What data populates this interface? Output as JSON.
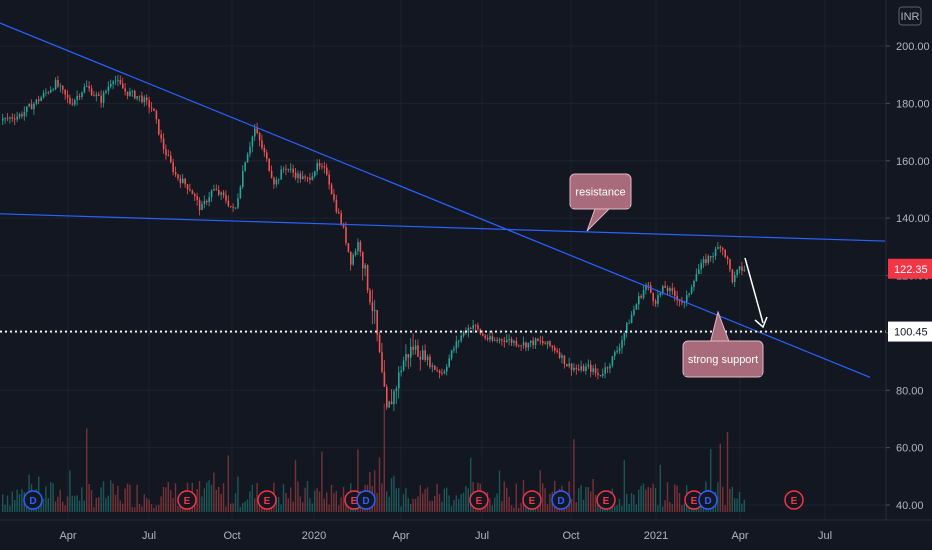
{
  "currency": "INR",
  "colors": {
    "background": "#131722",
    "up": "#26a69a",
    "down": "#ef5350",
    "trendline": "#2962ff",
    "grid": "#1e222d",
    "axis_text": "#b2b5be",
    "callout_bg": "#a86b7c",
    "callout_border": "#e2b8c4",
    "dividend": "#2962ff",
    "earnings": "#f23645"
  },
  "chart_data": {
    "type": "candlestick",
    "ylim": [
      36,
      208
    ],
    "y_ticks": [
      "200.00",
      "180.00",
      "160.00",
      "140.00",
      "120.00",
      "100.00",
      "80.00",
      "60.00",
      "40.00"
    ],
    "x_ticks": [
      "Apr",
      "Jul",
      "Oct",
      "2020",
      "Apr",
      "Jul",
      "Oct",
      "2021",
      "Apr",
      "Jul"
    ],
    "last_price": "122.35",
    "support_price": "100.45",
    "support_level": 100.45,
    "price_path": [
      [
        0,
        174
      ],
      [
        20,
        176
      ],
      [
        40,
        182
      ],
      [
        55,
        187
      ],
      [
        70,
        180
      ],
      [
        85,
        186
      ],
      [
        100,
        181
      ],
      [
        112,
        189
      ],
      [
        125,
        184
      ],
      [
        140,
        182
      ],
      [
        152,
        178
      ],
      [
        162,
        165
      ],
      [
        175,
        155
      ],
      [
        190,
        150
      ],
      [
        200,
        143
      ],
      [
        212,
        150
      ],
      [
        224,
        147
      ],
      [
        234,
        142
      ],
      [
        244,
        160
      ],
      [
        254,
        171
      ],
      [
        264,
        162
      ],
      [
        274,
        152
      ],
      [
        284,
        158
      ],
      [
        296,
        155
      ],
      [
        306,
        153
      ],
      [
        316,
        158
      ],
      [
        326,
        156
      ],
      [
        334,
        145
      ],
      [
        342,
        137
      ],
      [
        350,
        125
      ],
      [
        358,
        132
      ],
      [
        366,
        118
      ],
      [
        374,
        105
      ],
      [
        380,
        88
      ],
      [
        386,
        72
      ],
      [
        394,
        80
      ],
      [
        402,
        90
      ],
      [
        412,
        95
      ],
      [
        422,
        93
      ],
      [
        432,
        88
      ],
      [
        442,
        86
      ],
      [
        452,
        94
      ],
      [
        462,
        100
      ],
      [
        472,
        103
      ],
      [
        482,
        99
      ],
      [
        492,
        97
      ],
      [
        502,
        98
      ],
      [
        512,
        97
      ],
      [
        524,
        96
      ],
      [
        536,
        97
      ],
      [
        546,
        96
      ],
      [
        556,
        94
      ],
      [
        566,
        89
      ],
      [
        578,
        87
      ],
      [
        588,
        88
      ],
      [
        598,
        85
      ],
      [
        608,
        89
      ],
      [
        618,
        95
      ],
      [
        628,
        104
      ],
      [
        638,
        112
      ],
      [
        646,
        117
      ],
      [
        654,
        111
      ],
      [
        664,
        116
      ],
      [
        674,
        113
      ],
      [
        684,
        110
      ],
      [
        694,
        120
      ],
      [
        704,
        125
      ],
      [
        714,
        128
      ],
      [
        720,
        131
      ],
      [
        726,
        126
      ],
      [
        732,
        118
      ],
      [
        738,
        122
      ],
      [
        744,
        122.35
      ]
    ],
    "trendlines": [
      {
        "name": "resistance",
        "x1": 0,
        "y1": 141.5,
        "x2": 885,
        "y2": 132.0
      },
      {
        "name": "support",
        "x1": 0,
        "y1": 208.0,
        "x2": 870,
        "y2": 84.5
      }
    ],
    "events": [
      {
        "letter": "D",
        "type": "dividend",
        "x": 33
      },
      {
        "letter": "E",
        "type": "earnings",
        "x": 187
      },
      {
        "letter": "E",
        "type": "earnings",
        "x": 267
      },
      {
        "letter": "E",
        "type": "earnings",
        "x": 354
      },
      {
        "letter": "D",
        "type": "dividend",
        "x": 366
      },
      {
        "letter": "E",
        "type": "earnings",
        "x": 479
      },
      {
        "letter": "E",
        "type": "earnings",
        "x": 532
      },
      {
        "letter": "D",
        "type": "dividend",
        "x": 561
      },
      {
        "letter": "E",
        "type": "earnings",
        "x": 606
      },
      {
        "letter": "E",
        "type": "earnings",
        "x": 694
      },
      {
        "letter": "D",
        "type": "dividend",
        "x": 708
      },
      {
        "letter": "E",
        "type": "earnings",
        "x": 794
      }
    ],
    "annotations": [
      {
        "text": "resistance"
      },
      {
        "text": "strong support"
      }
    ]
  }
}
